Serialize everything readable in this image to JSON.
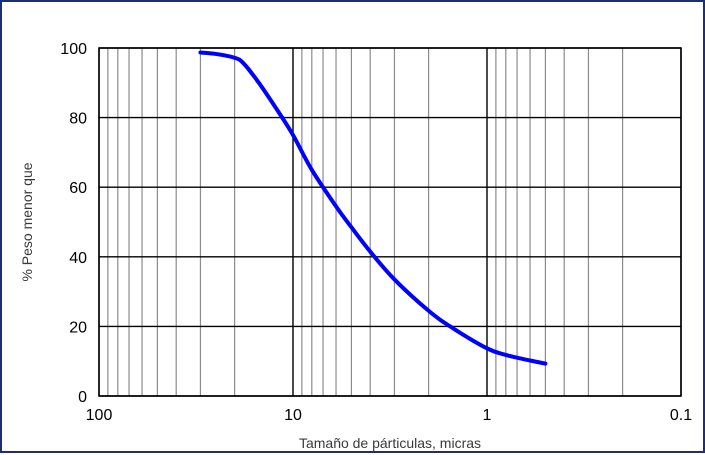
{
  "chart_data": {
    "type": "line",
    "title": "",
    "xlabel": "Tamaño de párticulas,  micras",
    "ylabel": "% Peso menor que",
    "x_scale": "log",
    "x_reversed": true,
    "xlim": [
      100,
      0.1
    ],
    "ylim": [
      0,
      100
    ],
    "x_ticks": [
      100,
      10,
      1,
      0.1
    ],
    "x_tick_labels": [
      "100",
      "10",
      "1",
      "0.1"
    ],
    "y_ticks": [
      0,
      20,
      40,
      60,
      80,
      100
    ],
    "y_tick_labels": [
      "0",
      "20",
      "40",
      "60",
      "80",
      "100"
    ],
    "grid": true,
    "legend": "none",
    "series": [
      {
        "color": "#0000ff",
        "x": [
          30,
          25,
          20,
          18,
          15,
          12,
          10,
          8,
          6,
          5,
          4,
          3,
          2,
          1.5,
          1,
          0.8,
          0.6,
          0.5
        ],
        "y": [
          98.7,
          98.3,
          97.2,
          95.6,
          90,
          82,
          75,
          65,
          54.5,
          48.5,
          41.5,
          33.5,
          24.5,
          19.5,
          13.7,
          11.8,
          10.2,
          9.3
        ]
      }
    ]
  }
}
